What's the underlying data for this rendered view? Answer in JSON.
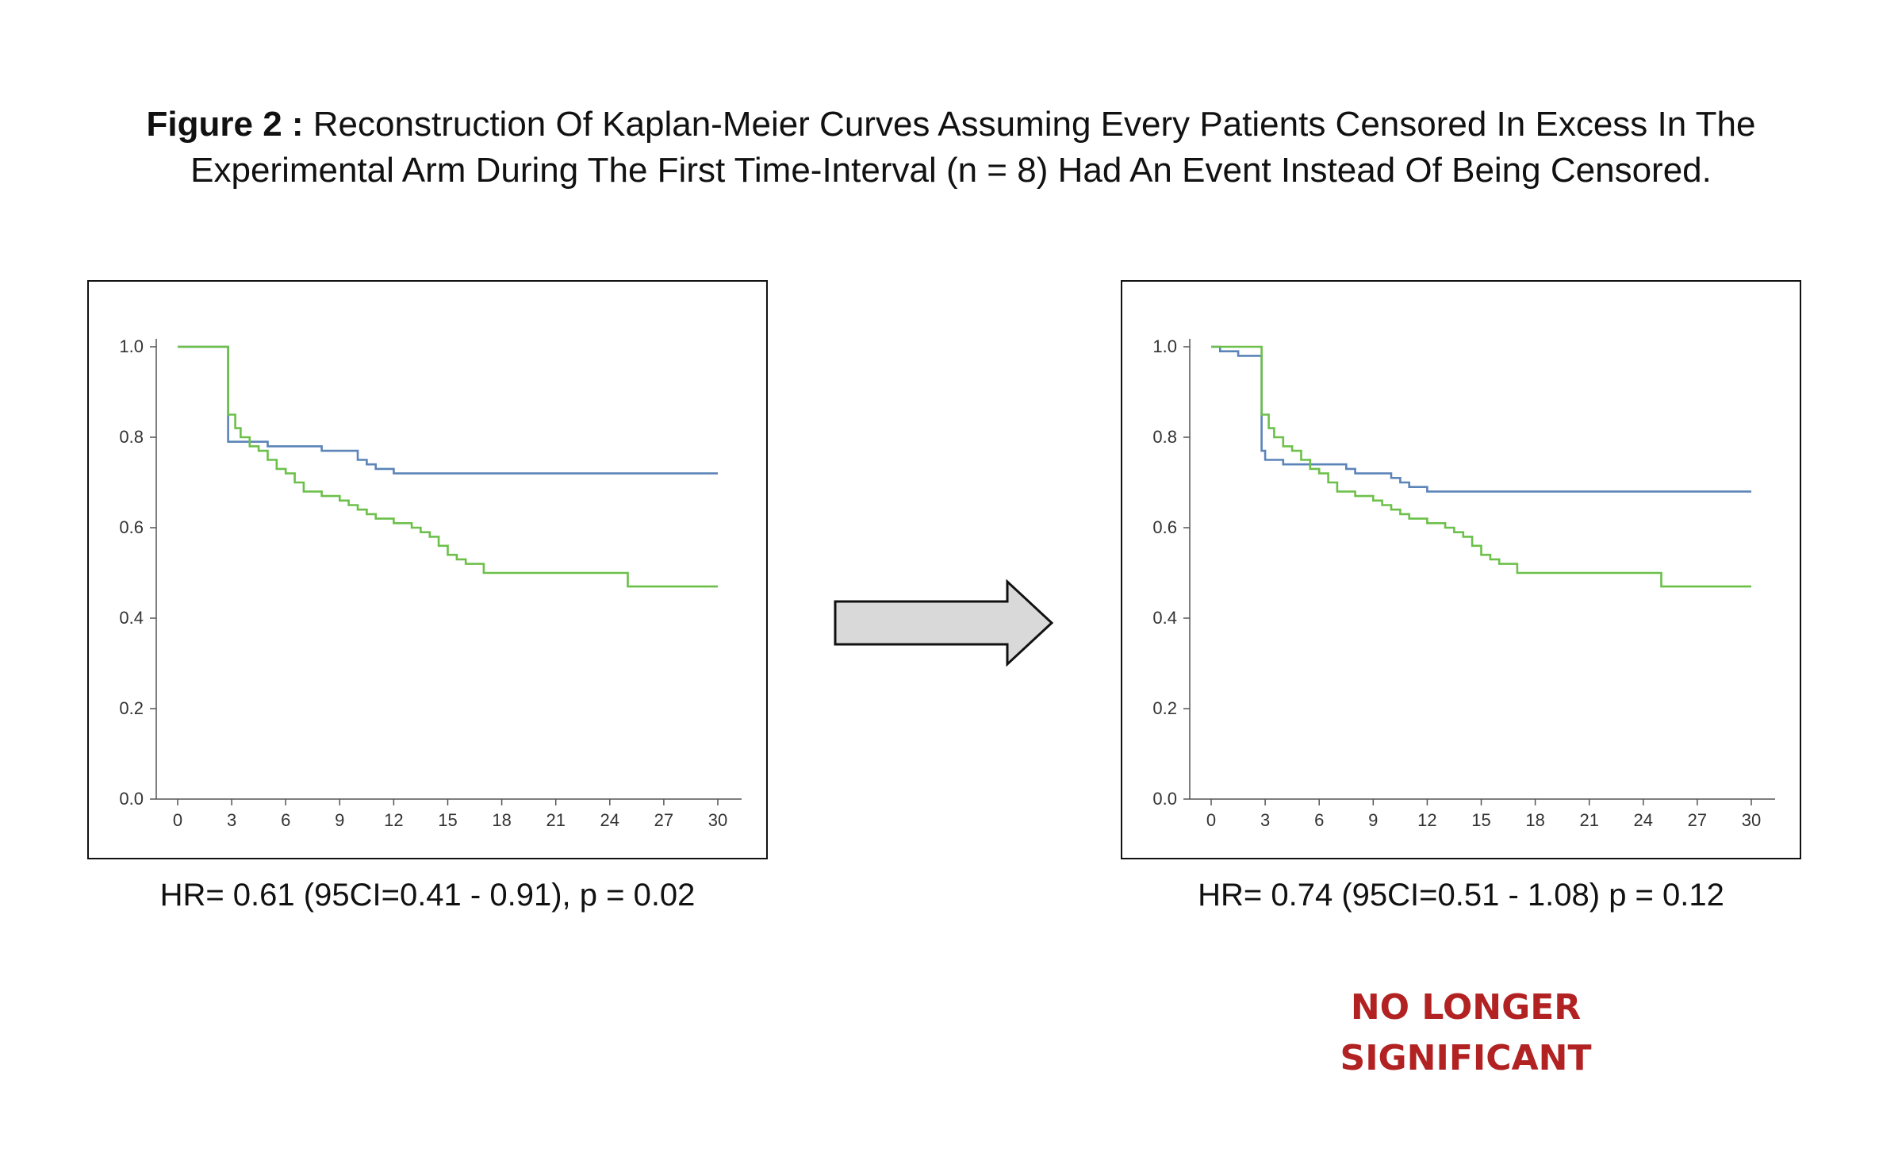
{
  "figure": {
    "title_bold": "Figure 2 :",
    "title_line1": "Reconstruction Of Kaplan-Meier Curves Assuming Every Patients Censored In Excess In The",
    "title_line2": "Experimental Arm During The First Time-Interval (n = 8) Had An Event Instead Of Being Censored."
  },
  "arrow_icon": "right-arrow-icon",
  "verdict": {
    "line1": "NO LONGER",
    "line2": "SIGNIFICANT",
    "color": "#b22222"
  },
  "colors": {
    "blue": "#5b84b8",
    "green": "#6cc04a"
  },
  "chart_data": [
    {
      "type": "line",
      "caption": "HR= 0.61 (95CI=0.41 - 0.91),  p = 0.02",
      "xlim": [
        0,
        30
      ],
      "ylim": [
        0,
        1
      ],
      "x_ticks": [
        "0",
        "3",
        "6",
        "9",
        "12",
        "15",
        "18",
        "21",
        "24",
        "27",
        "30"
      ],
      "y_ticks": [
        "0.0",
        "0.2",
        "0.4",
        "0.6",
        "0.8",
        "1.0"
      ],
      "series": [
        {
          "color": "#5b84b8",
          "x": [
            0,
            2.8,
            2.8,
            4,
            5,
            7.5,
            8,
            9.5,
            10,
            10.5,
            11,
            12,
            30
          ],
          "y": [
            1.0,
            1.0,
            0.79,
            0.79,
            0.78,
            0.78,
            0.77,
            0.77,
            0.75,
            0.74,
            0.73,
            0.72,
            0.72
          ]
        },
        {
          "color": "#6cc04a",
          "x": [
            0,
            2.8,
            2.8,
            3.2,
            3.5,
            4,
            4.5,
            5,
            5.5,
            6,
            6.5,
            7,
            8,
            9,
            9.5,
            10,
            10.5,
            11,
            12,
            13,
            13.5,
            14,
            14.5,
            15,
            15.5,
            16,
            17,
            25,
            25,
            30
          ],
          "y": [
            1.0,
            1.0,
            0.85,
            0.82,
            0.8,
            0.78,
            0.77,
            0.75,
            0.73,
            0.72,
            0.7,
            0.68,
            0.67,
            0.66,
            0.65,
            0.64,
            0.63,
            0.62,
            0.61,
            0.6,
            0.59,
            0.58,
            0.56,
            0.54,
            0.53,
            0.52,
            0.5,
            0.5,
            0.47,
            0.47
          ]
        }
      ]
    },
    {
      "type": "line",
      "caption": "HR= 0.74 (95CI=0.51 - 1.08)  p = 0.12",
      "xlim": [
        0,
        30
      ],
      "ylim": [
        0,
        1
      ],
      "x_ticks": [
        "0",
        "3",
        "6",
        "9",
        "12",
        "15",
        "18",
        "21",
        "24",
        "27",
        "30"
      ],
      "y_ticks": [
        "0.0",
        "0.2",
        "0.4",
        "0.6",
        "0.8",
        "1.0"
      ],
      "series": [
        {
          "color": "#5b84b8",
          "x": [
            0,
            0.5,
            1,
            1.5,
            2,
            2.8,
            2.8,
            3,
            4,
            5,
            6,
            7.5,
            8,
            9,
            10,
            10.5,
            11,
            12,
            30
          ],
          "y": [
            1.0,
            0.99,
            0.99,
            0.98,
            0.98,
            0.97,
            0.77,
            0.75,
            0.74,
            0.74,
            0.74,
            0.73,
            0.72,
            0.72,
            0.71,
            0.7,
            0.69,
            0.68,
            0.68
          ]
        },
        {
          "color": "#6cc04a",
          "x": [
            0,
            2.8,
            2.8,
            3.2,
            3.5,
            4,
            4.5,
            5,
            5.5,
            6,
            6.5,
            7,
            8,
            9,
            9.5,
            10,
            10.5,
            11,
            12,
            13,
            13.5,
            14,
            14.5,
            15,
            15.5,
            16,
            17,
            25,
            25,
            30
          ],
          "y": [
            1.0,
            1.0,
            0.85,
            0.82,
            0.8,
            0.78,
            0.77,
            0.75,
            0.73,
            0.72,
            0.7,
            0.68,
            0.67,
            0.66,
            0.65,
            0.64,
            0.63,
            0.62,
            0.61,
            0.6,
            0.59,
            0.58,
            0.56,
            0.54,
            0.53,
            0.52,
            0.5,
            0.5,
            0.47,
            0.47
          ]
        }
      ]
    }
  ]
}
